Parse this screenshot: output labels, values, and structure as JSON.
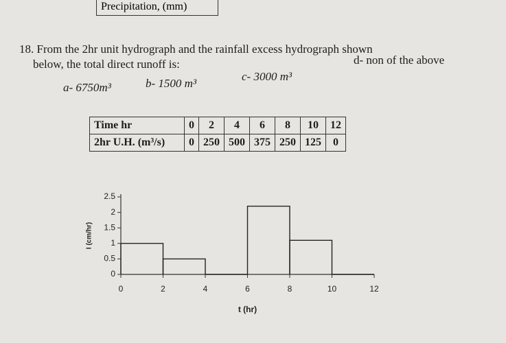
{
  "header": {
    "label": "Precipitation, (mm)"
  },
  "question": {
    "lines": [
      "18. From the 2hr unit hydrograph and the rainfall excess hydrograph shown",
      "below, the total direct runoff is:"
    ],
    "options": [
      "a- 6750m³",
      "b- 1500 m³",
      "c- 3000 m³",
      "d- non of the above"
    ]
  },
  "table": {
    "rows": [
      [
        "Time hr",
        "0",
        "2",
        "4",
        "6",
        "8",
        "10",
        "12"
      ],
      [
        "2hr U.H. (m³/s)",
        "0",
        "250",
        "500",
        "375",
        "250",
        "125",
        "0"
      ]
    ]
  },
  "chart_data": {
    "type": "histogram",
    "x_label": "t (hr)",
    "y_label": "I (cm/hr)",
    "bins": [
      0,
      2,
      4,
      6,
      8,
      10,
      12
    ],
    "values": [
      1,
      0.5,
      0,
      2.2,
      1.1,
      0
    ],
    "color": "#222222",
    "xlim": [
      0,
      12
    ],
    "xticks": [
      0,
      2,
      4,
      6,
      8,
      10,
      12
    ],
    "ylim": [
      0,
      2.5
    ],
    "yticks": [
      0,
      0.5,
      1,
      1.5,
      2,
      2.5
    ]
  }
}
